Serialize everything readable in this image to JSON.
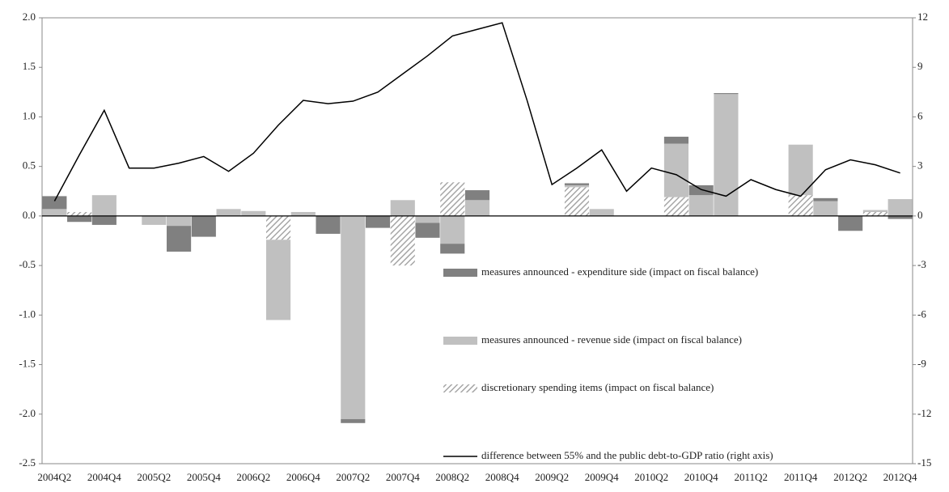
{
  "chart_data": {
    "type": "bar",
    "categories": [
      "2004Q2",
      null,
      "2004Q4",
      null,
      "2005Q2",
      null,
      "2005Q4",
      null,
      "2006Q2",
      null,
      "2006Q4",
      null,
      "2007Q2",
      null,
      "2007Q4",
      null,
      "2008Q2",
      null,
      "2008Q4",
      null,
      "2009Q2",
      null,
      "2009Q4",
      null,
      "2010Q2",
      null,
      "2010Q4",
      null,
      "2011Q2",
      null,
      "2011Q4",
      null,
      "2012Q2",
      null,
      "2012Q4"
    ],
    "series": [
      {
        "name": "measures announced - expenditure side (impact on fiscal balance)",
        "type": "bar",
        "color": "#808080",
        "values": [
          0.13,
          -0.06,
          -0.09,
          0,
          0,
          -0.26,
          -0.21,
          0,
          0,
          0,
          0,
          -0.18,
          -0.04,
          -0.12,
          0,
          -0.15,
          -0.1,
          0.1,
          0,
          0,
          0,
          0.02,
          0,
          0,
          0,
          0.07,
          0.1,
          0.01,
          0,
          0,
          0,
          0.03,
          -0.15,
          0,
          -0.03
        ]
      },
      {
        "name": "measures announced - revenue side (impact on fiscal balance)",
        "type": "bar",
        "color": "#c0c0c0",
        "values": [
          0.07,
          0,
          0.21,
          0,
          -0.09,
          -0.1,
          0,
          0.07,
          0.05,
          -0.81,
          0.04,
          0,
          -2.05,
          0,
          0.16,
          -0.07,
          -0.28,
          0.16,
          0,
          0,
          0,
          0.02,
          0.07,
          0,
          0,
          0.54,
          0.21,
          1.23,
          0,
          0,
          0.51,
          0.15,
          0,
          0.02,
          0.17
        ]
      },
      {
        "name": "discretionary spending items (impact on fiscal balance)",
        "type": "bar",
        "color": "#a6a6a6",
        "hatch": true,
        "values": [
          0,
          0.04,
          0,
          0,
          0,
          0,
          0,
          0,
          0,
          -0.24,
          0,
          0,
          0,
          0,
          -0.5,
          0,
          0.34,
          0,
          0,
          0,
          0,
          0.29,
          0,
          0,
          0,
          0.19,
          0,
          0,
          0,
          0,
          0.21,
          0,
          0,
          0.04,
          0
        ]
      },
      {
        "name": "difference between 55% and the public debt-to-GDP ratio (right axis)",
        "type": "line",
        "color": "#000000",
        "axis": "y2",
        "values": [
          0.9,
          3.7,
          6.4,
          2.9,
          2.9,
          3.2,
          3.6,
          2.7,
          3.8,
          5.5,
          7.0,
          6.8,
          6.95,
          7.5,
          8.6,
          9.7,
          10.9,
          11.3,
          11.7,
          7.0,
          1.9,
          2.9,
          4.0,
          1.5,
          2.9,
          2.5,
          1.6,
          1.2,
          2.2,
          1.6,
          1.2,
          2.8,
          3.4,
          3.1,
          2.6
        ]
      }
    ],
    "ylim": [
      -2.5,
      2.0
    ],
    "yticks": [
      {
        "value": 2.0,
        "label": "2.0"
      },
      1.5,
      {
        "value": 1.0,
        "label": "1.0"
      },
      0.5,
      {
        "value": 0.0,
        "label": "0.0"
      },
      -0.5,
      {
        "value": -1.0,
        "label": "-1.0"
      },
      -1.5,
      {
        "value": -2.0,
        "label": "-2.0"
      },
      -2.5
    ],
    "y2lim": [
      -15,
      12
    ],
    "y2ticks": [
      12,
      9,
      6,
      3,
      0,
      -3,
      -6,
      -9,
      -12,
      -15
    ],
    "grid": false,
    "legend": "lower-right"
  }
}
